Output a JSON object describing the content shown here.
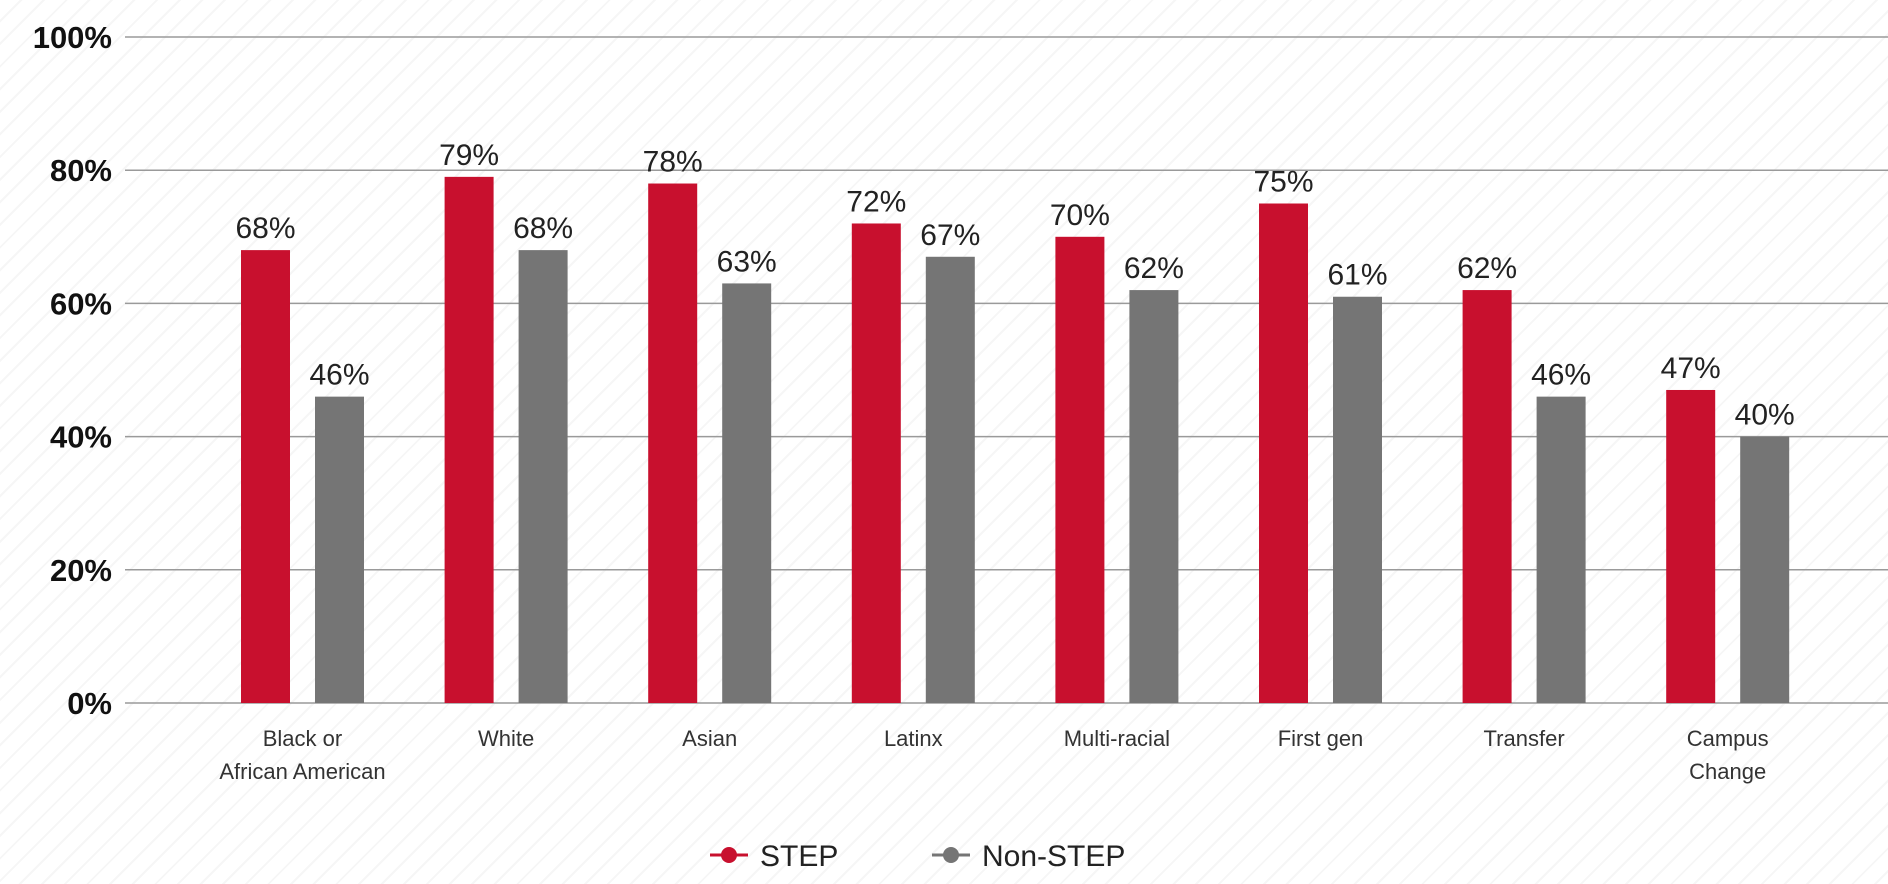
{
  "chart_data": {
    "type": "bar",
    "title": "",
    "xlabel": "",
    "ylabel": "",
    "ylim": [
      0,
      100
    ],
    "yticks": [
      "0%",
      "20%",
      "40%",
      "60%",
      "80%",
      "100%"
    ],
    "grid": true,
    "legend_position": "bottom-center",
    "categories": [
      [
        "Black or",
        "African American"
      ],
      [
        "White"
      ],
      [
        "Asian"
      ],
      [
        "Latinx"
      ],
      [
        "Multi-racial"
      ],
      [
        "First gen"
      ],
      [
        "Transfer"
      ],
      [
        "Campus",
        "Change"
      ]
    ],
    "series": [
      {
        "name": "STEP",
        "color": "#c8102e",
        "values": [
          68,
          79,
          78,
          72,
          70,
          75,
          62,
          47
        ],
        "labels": [
          "68%",
          "79%",
          "78%",
          "72%",
          "70%",
          "75%",
          "62%",
          "47%"
        ]
      },
      {
        "name": "Non-STEP",
        "color": "#757575",
        "values": [
          46,
          68,
          63,
          67,
          62,
          61,
          46,
          40
        ],
        "labels": [
          "46%",
          "68%",
          "63%",
          "67%",
          "62%",
          "61%",
          "46%",
          "40%"
        ]
      }
    ]
  }
}
